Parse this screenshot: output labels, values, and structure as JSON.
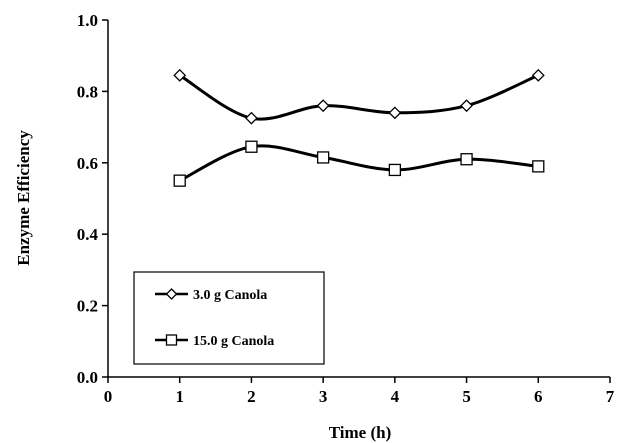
{
  "chart_data": {
    "type": "line",
    "xlabel": "Time (h)",
    "ylabel": "Enzyme Efficiency",
    "xlim": [
      0,
      7
    ],
    "ylim": [
      0.0,
      1.0
    ],
    "x_ticks": [
      "0",
      "1",
      "2",
      "3",
      "4",
      "5",
      "6",
      "7"
    ],
    "y_ticks": [
      "0.0",
      "0.2",
      "0.4",
      "0.6",
      "0.8",
      "1.0"
    ],
    "grid": false,
    "legend_position": "lower-left",
    "series": [
      {
        "name": "3.0 g Canola",
        "marker": "diamond",
        "color": "#000000",
        "x": [
          1,
          2,
          3,
          4,
          5,
          6
        ],
        "y": [
          0.845,
          0.725,
          0.76,
          0.74,
          0.76,
          0.845
        ]
      },
      {
        "name": "15.0 g Canola",
        "marker": "square",
        "color": "#000000",
        "x": [
          1,
          2,
          3,
          4,
          5,
          6
        ],
        "y": [
          0.55,
          0.645,
          0.615,
          0.58,
          0.61,
          0.59
        ]
      }
    ]
  }
}
